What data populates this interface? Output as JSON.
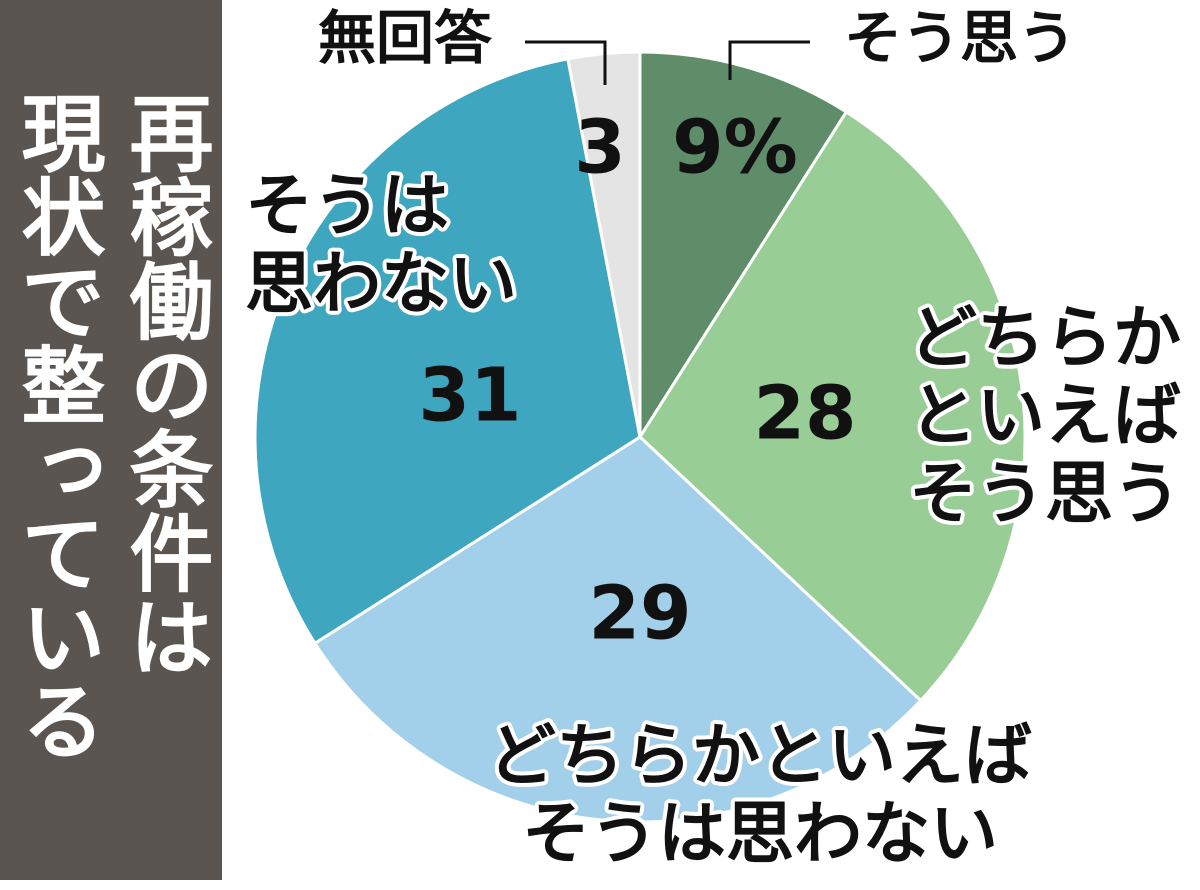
{
  "chart_data": {
    "type": "pie",
    "title": [
      "再稼働の条件は",
      "現状で整っている"
    ],
    "categories": [
      "そう思う",
      "どちらか\nといえば\nそう思う",
      "どちらかといえば\nそうは思わない",
      "そうは\n思わない",
      "無回答"
    ],
    "values": [
      9,
      28,
      29,
      31,
      3
    ],
    "value_labels": [
      "9%",
      "28",
      "29",
      "31",
      "3"
    ],
    "colors": [
      "#5f8c69",
      "#99cd96",
      "#a2cfe9",
      "#3fa6c0",
      "#e4e4e4"
    ]
  }
}
